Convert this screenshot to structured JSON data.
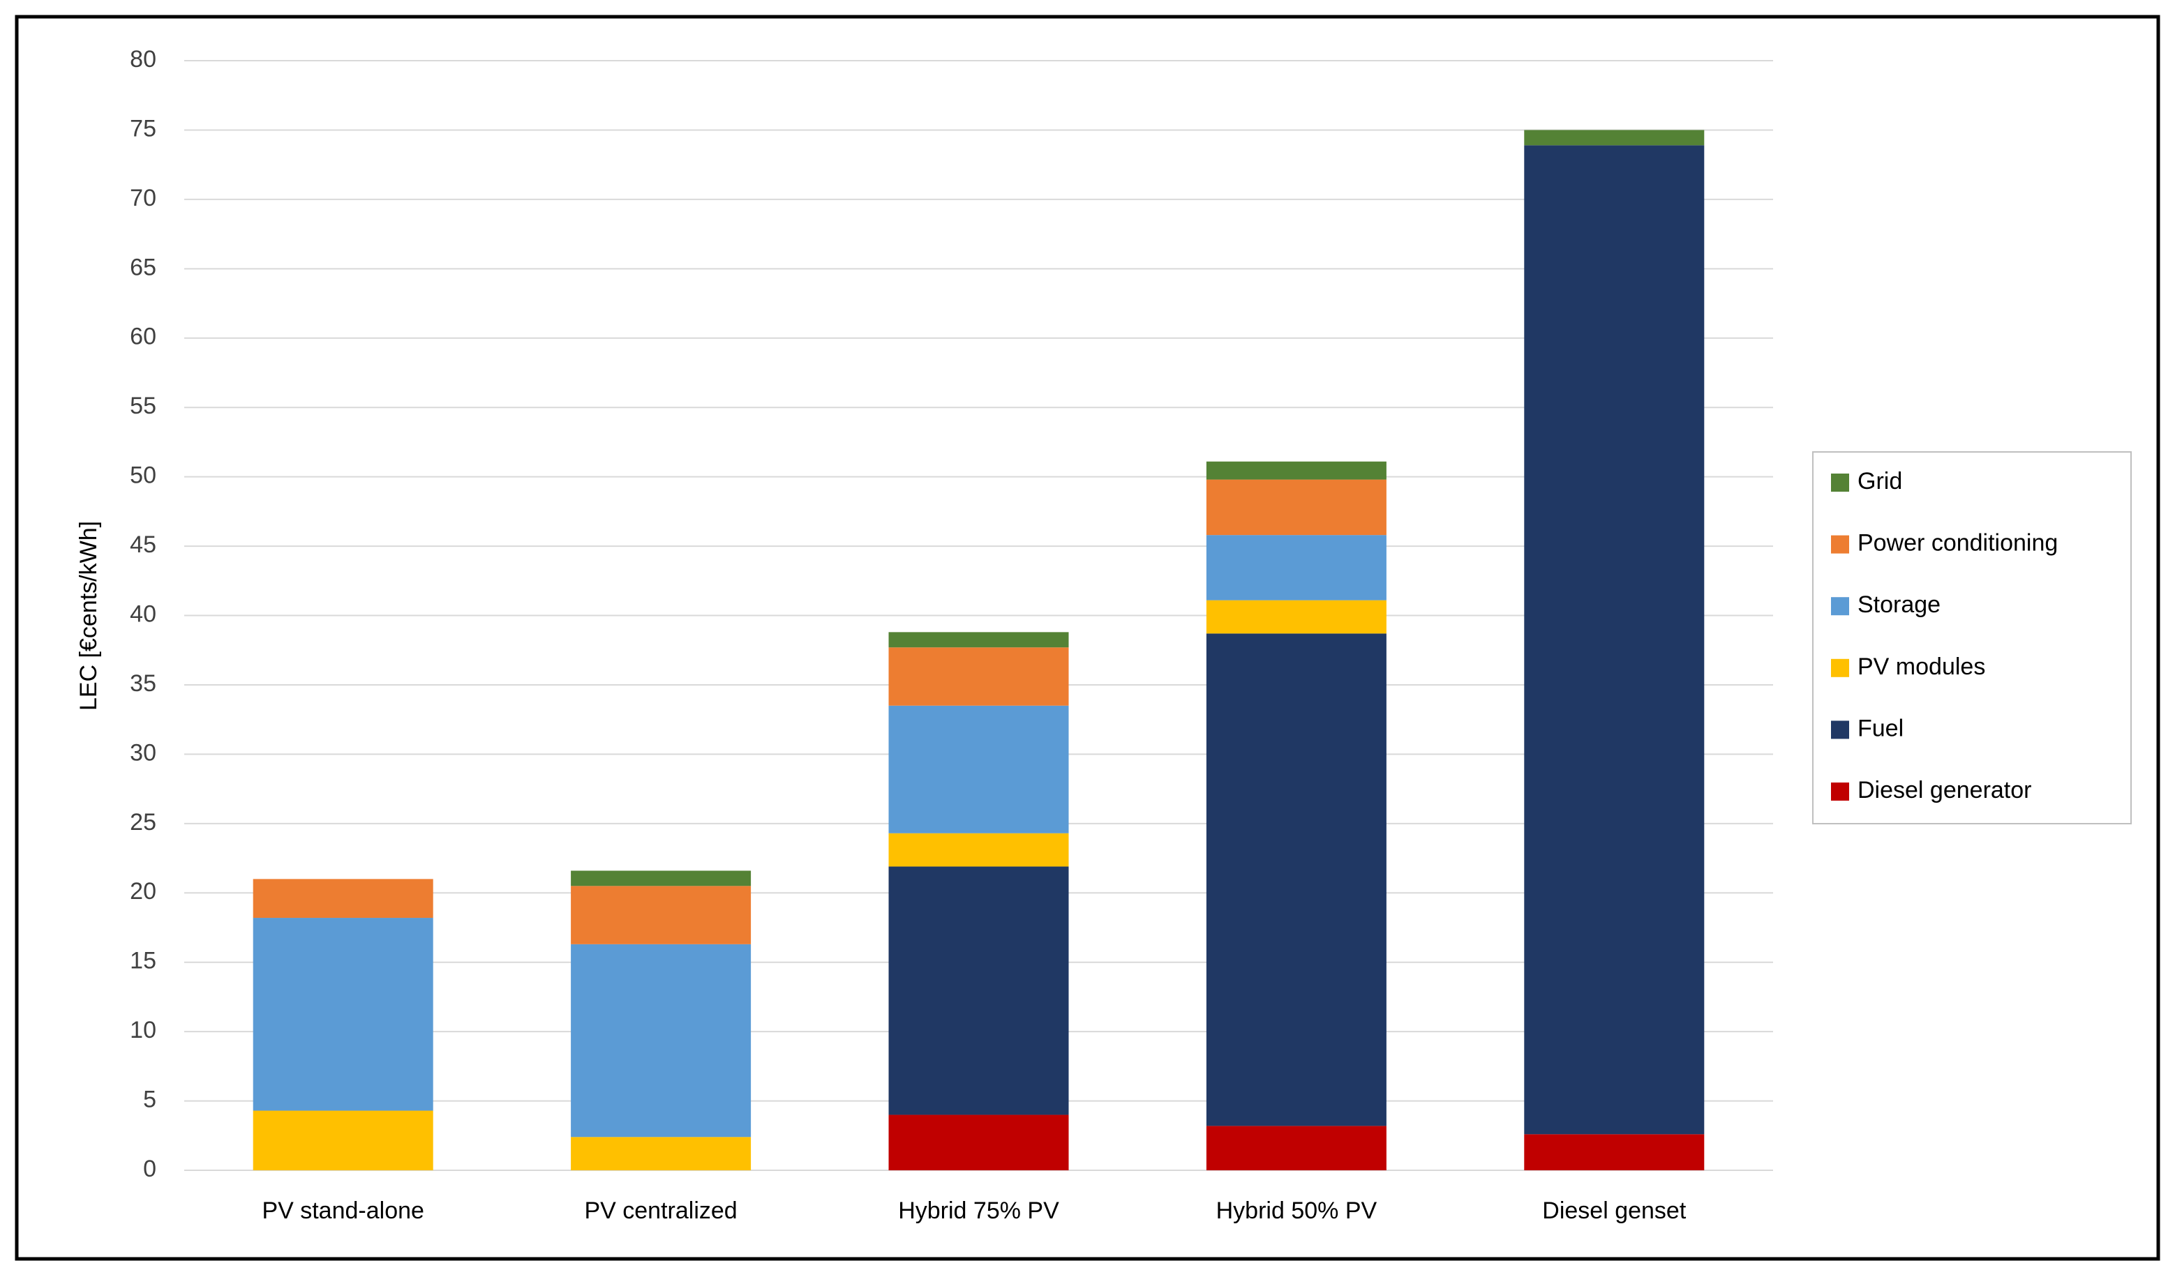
{
  "chart_data": {
    "type": "stacked_bar",
    "y_label": "LEC [€cents/kWh]",
    "categories": [
      "PV stand-alone",
      "PV centralized",
      "Hybrid 75% PV",
      "Hybrid 50% PV",
      "Diesel genset"
    ],
    "series": [
      {
        "name": "Diesel generator",
        "color": "#c00000",
        "values": [
          0,
          0,
          4.0,
          3.2,
          2.6
        ]
      },
      {
        "name": "Fuel",
        "color": "#203864",
        "values": [
          0,
          0,
          17.9,
          35.5,
          71.3
        ]
      },
      {
        "name": "PV modules",
        "color": "#ffc000",
        "values": [
          4.3,
          2.4,
          2.4,
          2.4,
          0
        ]
      },
      {
        "name": "Storage",
        "color": "#5b9bd5",
        "values": [
          13.9,
          13.9,
          9.2,
          4.7,
          0
        ]
      },
      {
        "name": "Power conditioning",
        "color": "#ed7d31",
        "values": [
          2.8,
          4.2,
          4.2,
          4.0,
          0
        ]
      },
      {
        "name": "Grid",
        "color": "#548235",
        "values": [
          0,
          1.1,
          1.1,
          1.3,
          1.1
        ]
      }
    ],
    "ylim": [
      0,
      80
    ],
    "yticks": [
      0,
      5,
      10,
      15,
      20,
      25,
      30,
      35,
      40,
      45,
      50,
      55,
      60,
      65,
      70,
      75,
      80
    ],
    "grid": true,
    "legend": "right"
  }
}
